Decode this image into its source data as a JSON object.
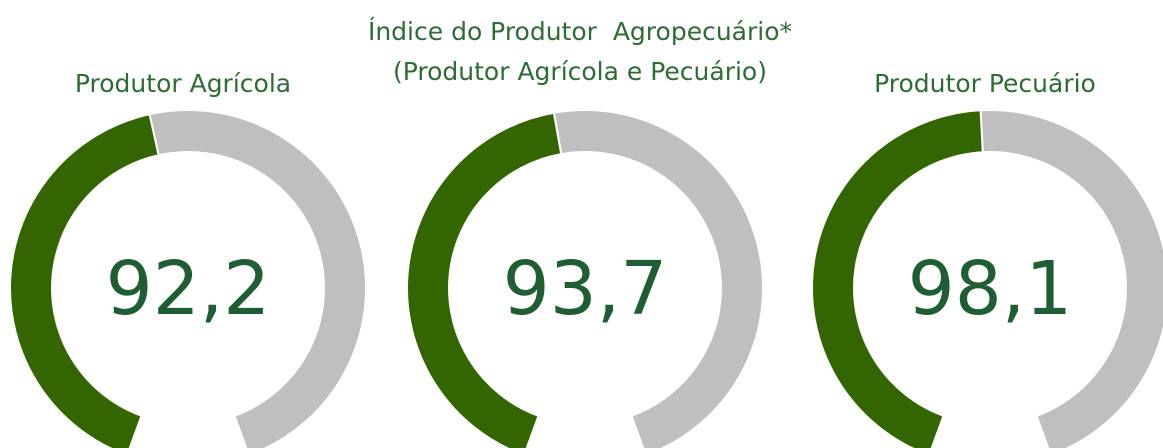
{
  "chart_data": [
    {
      "type": "gauge",
      "title": "Produtor Agrícola",
      "value": 92.2,
      "value_label": "92,2",
      "ylim": [
        0,
        200
      ],
      "color": "#336600",
      "track_color": "#bfbfbf"
    },
    {
      "type": "gauge",
      "title": "Índice do Produtor  Agropecuário*",
      "subtitle": "(Produtor Agrícola e Pecuário)",
      "value": 93.7,
      "value_label": "93,7",
      "ylim": [
        0,
        200
      ],
      "color": "#336600",
      "track_color": "#bfbfbf"
    },
    {
      "type": "gauge",
      "title": "Produtor Pecuário",
      "value": 98.1,
      "value_label": "98,1",
      "ylim": [
        0,
        200
      ],
      "color": "#336600",
      "track_color": "#bfbfbf"
    }
  ]
}
